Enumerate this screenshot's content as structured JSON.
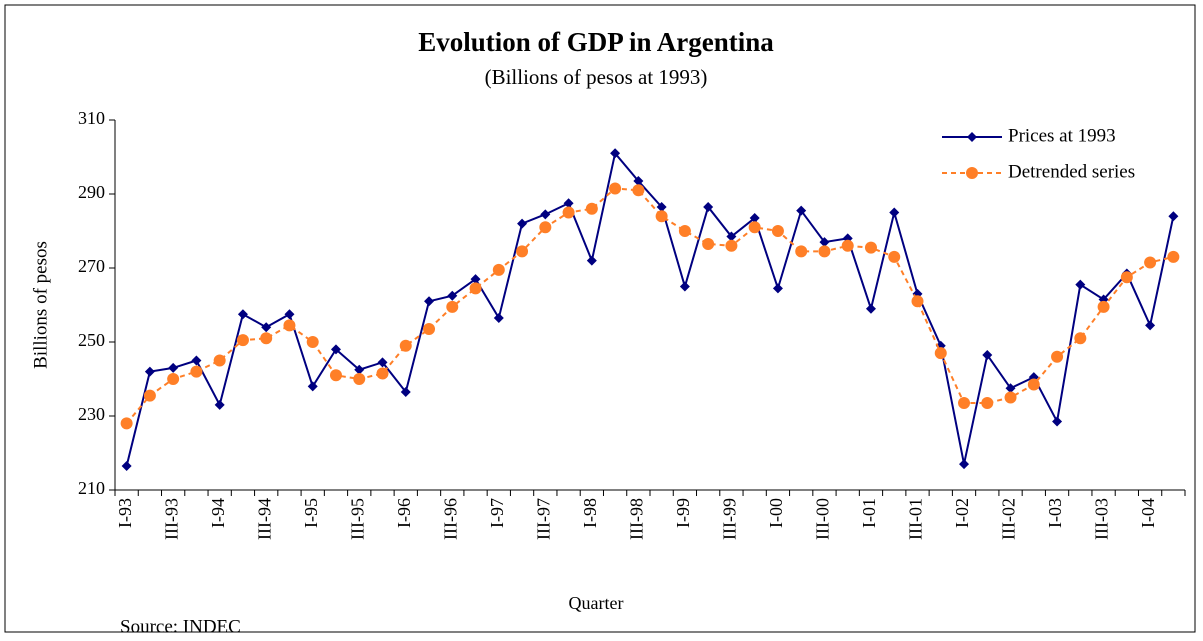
{
  "chart_data": {
    "type": "line",
    "title": "Evolution of GDP in Argentina",
    "subtitle": "(Billions of pesos at 1993)",
    "x_label": "Quarter",
    "y_label": "Billions of pesos",
    "source": "Source: INDEC",
    "categories": [
      "I-93",
      null,
      "III-93",
      null,
      "I-94",
      null,
      "III-94",
      null,
      "I-95",
      null,
      "III-95",
      null,
      "I-96",
      null,
      "III-96",
      null,
      "I-97",
      null,
      "III-97",
      null,
      "I-98",
      null,
      "III-98",
      null,
      "I-99",
      null,
      "III-99",
      null,
      "I-00",
      null,
      "III-00",
      null,
      "I-01",
      null,
      "III-01",
      null,
      "I-02",
      null,
      "III-02",
      null,
      "I-03",
      null,
      "III-03",
      null,
      "I-04",
      null
    ],
    "series": [
      {
        "name": "Prices at 1993",
        "color": "#000080",
        "marker": "diamond",
        "dashed": false,
        "values": [
          216.5,
          242,
          243,
          245,
          233,
          257.5,
          254,
          257.5,
          238,
          248,
          242.5,
          244.5,
          236.5,
          261,
          262.5,
          267,
          256.5,
          282,
          284.5,
          287.5,
          272,
          301,
          293.5,
          286.5,
          265,
          286.5,
          278.5,
          283.5,
          264.5,
          285.5,
          277,
          278,
          259,
          285,
          263,
          249,
          217,
          246.5,
          237.5,
          240.5,
          228.5,
          265.5,
          261.5,
          268.5,
          254.5,
          284
        ]
      },
      {
        "name": "Detrended series",
        "color": "#ff7f27",
        "marker": "circle",
        "dashed": true,
        "values": [
          228,
          235.5,
          240,
          242,
          245,
          250.5,
          251,
          254.5,
          250,
          241,
          240,
          241.5,
          249,
          253.5,
          259.5,
          264.5,
          269.5,
          274.5,
          281,
          285,
          286,
          291.5,
          291,
          284,
          280,
          276.5,
          276,
          281,
          280,
          274.5,
          274.5,
          276,
          275.5,
          273,
          261,
          247,
          233.5,
          233.5,
          235,
          238.5,
          246,
          251,
          259.5,
          267.5,
          271.5,
          273
        ]
      }
    ],
    "ylim": [
      210,
      310
    ],
    "yticks": [
      210,
      230,
      250,
      270,
      290,
      310
    ],
    "grid": false,
    "legend": "upper right"
  }
}
